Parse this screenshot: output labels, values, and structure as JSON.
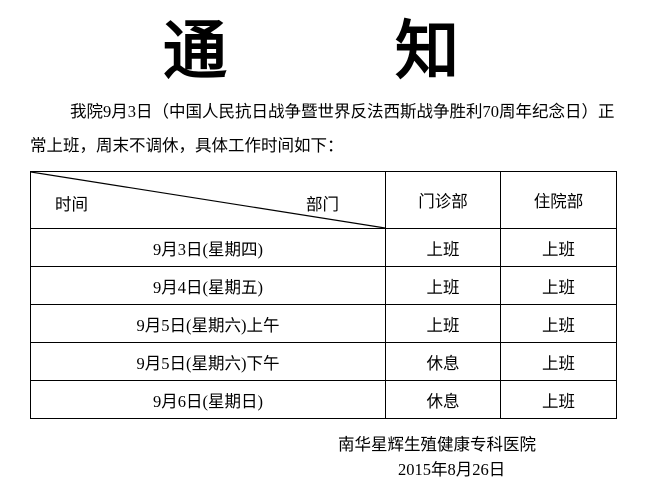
{
  "title": {
    "char1": "通",
    "char2": "知"
  },
  "body": "我院9月3日（中国人民抗日战争暨世界反法西斯战争胜利70周年纪念日）正常上班，周末不调休，具体工作时间如下：",
  "table": {
    "header": {
      "time": "时间",
      "dept": "部门",
      "col1": "门诊部",
      "col2": "住院部"
    },
    "rows": [
      {
        "date": "9月3日(星期四)",
        "outpatient": "上班",
        "inpatient": "上班"
      },
      {
        "date": "9月4日(星期五)",
        "outpatient": "上班",
        "inpatient": "上班"
      },
      {
        "date": "9月5日(星期六)上午",
        "outpatient": "上班",
        "inpatient": "上班"
      },
      {
        "date": "9月5日(星期六)下午",
        "outpatient": "休息",
        "inpatient": "上班"
      },
      {
        "date": "9月6日(星期日)",
        "outpatient": "休息",
        "inpatient": "上班"
      }
    ]
  },
  "footer": {
    "org": "南华星辉生殖健康专科医院",
    "date": "2015年8月26日"
  }
}
